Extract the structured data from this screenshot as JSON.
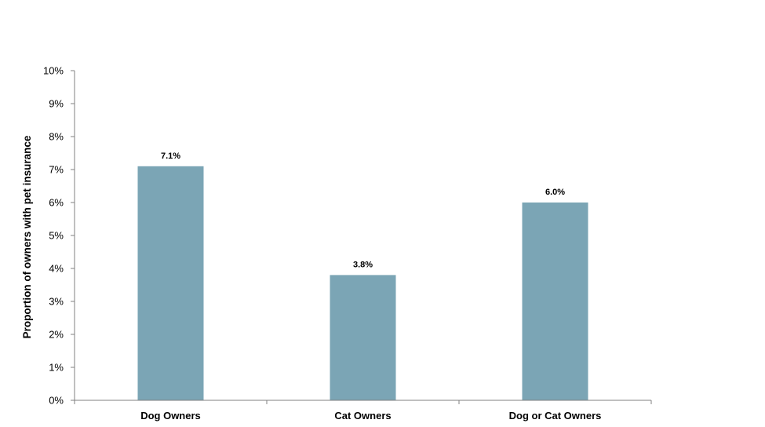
{
  "chart_data": {
    "type": "bar",
    "title": "",
    "xlabel": "",
    "ylabel": "Proportion of owners with pet insurance",
    "categories": [
      "Dog Owners",
      "Cat Owners",
      "Dog or Cat Owners"
    ],
    "values": [
      7.1,
      3.8,
      6.0
    ],
    "data_labels": [
      "7.1%",
      "3.8%",
      "6.0%"
    ],
    "ylim": [
      0,
      10
    ],
    "yticks": [
      0,
      1,
      2,
      3,
      4,
      5,
      6,
      7,
      8,
      9,
      10
    ],
    "ytick_labels": [
      "0%",
      "1%",
      "2%",
      "3%",
      "4%",
      "5%",
      "6%",
      "7%",
      "8%",
      "9%",
      "10%"
    ],
    "grid": false,
    "legend": "none",
    "bar_color": "#7BA5B5"
  }
}
